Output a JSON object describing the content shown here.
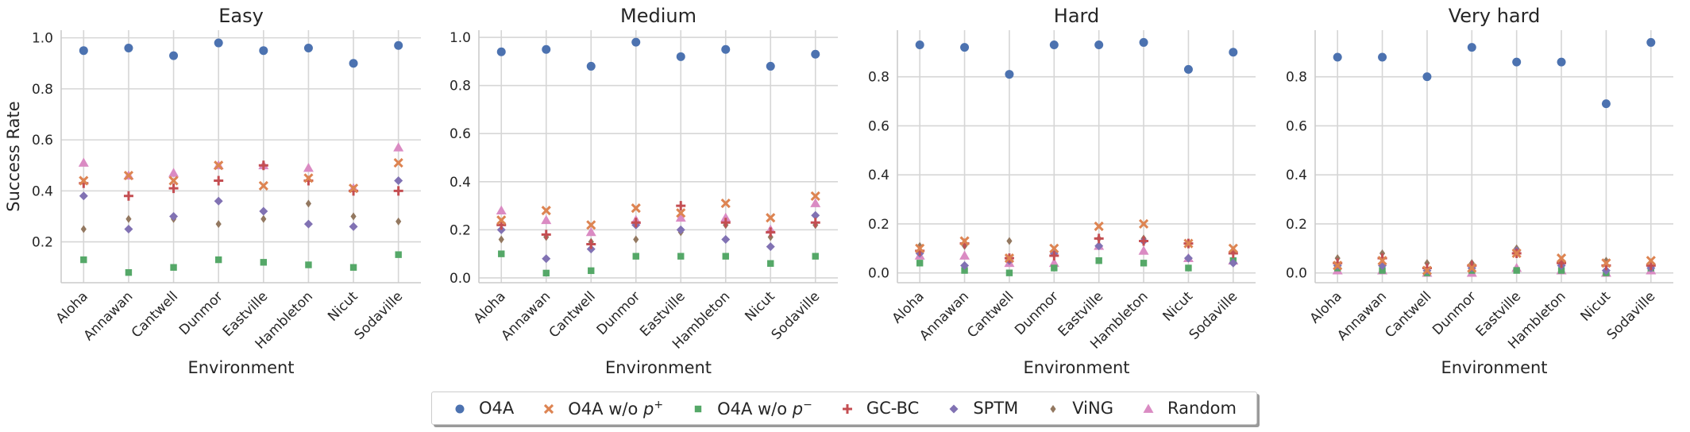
{
  "figure": {
    "ylabel": "Success Rate",
    "xlabel": "Environment"
  },
  "colors": {
    "O4A": "#4c72b0",
    "O4A w/o p+": "#dd8452",
    "O4A w/o p-": "#55a868",
    "GC-BC": "#c44e52",
    "SPTM": "#8172b3",
    "ViNG": "#937860",
    "Random": "#da8bc3"
  },
  "legend": [
    {
      "key": "O4A",
      "label": "O4A",
      "sup": "",
      "icon": "circle-marker"
    },
    {
      "key": "O4A w/o p+",
      "label": "O4A w/o p",
      "sup": "+",
      "icon": "x-marker"
    },
    {
      "key": "O4A w/o p-",
      "label": "O4A w/o p",
      "sup": "−",
      "icon": "square-marker"
    },
    {
      "key": "GC-BC",
      "label": "GC-BC",
      "sup": "",
      "icon": "plus-marker"
    },
    {
      "key": "SPTM",
      "label": "SPTM",
      "sup": "",
      "icon": "diamond-marker"
    },
    {
      "key": "ViNG",
      "label": "ViNG",
      "sup": "",
      "icon": "thin-diamond-marker"
    },
    {
      "key": "Random",
      "label": "Random",
      "sup": "",
      "icon": "triangle-marker"
    }
  ],
  "chart_data": [
    {
      "type": "scatter",
      "title": "Easy",
      "xlabel": "Environment",
      "ylabel": "Success Rate",
      "categories": [
        "Aloha",
        "Annawan",
        "Cantwell",
        "Dunmor",
        "Eastville",
        "Hambleton",
        "Nicut",
        "Sodaville"
      ],
      "ylim": [
        0.04,
        1.03
      ],
      "yticks": [
        0.2,
        0.4,
        0.6,
        0.8,
        1.0
      ],
      "grid": true,
      "series": [
        {
          "name": "O4A",
          "values": [
            0.95,
            0.96,
            0.93,
            0.98,
            0.95,
            0.96,
            0.9,
            0.97
          ]
        },
        {
          "name": "O4A w/o p+",
          "values": [
            0.44,
            0.46,
            0.44,
            0.5,
            0.42,
            0.45,
            0.41,
            0.51
          ]
        },
        {
          "name": "O4A w/o p-",
          "values": [
            0.13,
            0.08,
            0.1,
            0.13,
            0.12,
            0.11,
            0.1,
            0.15
          ]
        },
        {
          "name": "GC-BC",
          "values": [
            0.43,
            0.38,
            0.41,
            0.44,
            0.5,
            0.44,
            0.4,
            0.4
          ]
        },
        {
          "name": "SPTM",
          "values": [
            0.38,
            0.25,
            0.3,
            0.36,
            0.32,
            0.27,
            0.26,
            0.44
          ]
        },
        {
          "name": "ViNG",
          "values": [
            0.25,
            0.29,
            0.29,
            0.27,
            0.29,
            0.35,
            0.3,
            0.28
          ]
        },
        {
          "name": "Random",
          "values": [
            0.51,
            0.46,
            0.47,
            0.5,
            0.5,
            0.49,
            0.41,
            0.57
          ]
        }
      ]
    },
    {
      "type": "scatter",
      "title": "Medium",
      "xlabel": "Environment",
      "ylabel": "",
      "categories": [
        "Aloha",
        "Annawan",
        "Cantwell",
        "Dunmor",
        "Eastville",
        "Hambleton",
        "Nicut",
        "Sodaville"
      ],
      "ylim": [
        -0.02,
        1.03
      ],
      "yticks": [
        0.0,
        0.2,
        0.4,
        0.6,
        0.8,
        1.0
      ],
      "grid": true,
      "series": [
        {
          "name": "O4A",
          "values": [
            0.94,
            0.95,
            0.88,
            0.98,
            0.92,
            0.95,
            0.88,
            0.93
          ]
        },
        {
          "name": "O4A w/o p+",
          "values": [
            0.24,
            0.28,
            0.22,
            0.29,
            0.27,
            0.31,
            0.25,
            0.34
          ]
        },
        {
          "name": "O4A w/o p-",
          "values": [
            0.1,
            0.02,
            0.03,
            0.09,
            0.09,
            0.09,
            0.06,
            0.09
          ]
        },
        {
          "name": "GC-BC",
          "values": [
            0.22,
            0.18,
            0.14,
            0.23,
            0.3,
            0.23,
            0.19,
            0.23
          ]
        },
        {
          "name": "SPTM",
          "values": [
            0.2,
            0.08,
            0.12,
            0.22,
            0.2,
            0.16,
            0.13,
            0.26
          ]
        },
        {
          "name": "ViNG",
          "values": [
            0.16,
            0.17,
            0.15,
            0.16,
            0.19,
            0.22,
            0.17,
            0.22
          ]
        },
        {
          "name": "Random",
          "values": [
            0.28,
            0.24,
            0.19,
            0.24,
            0.25,
            0.25,
            0.2,
            0.31
          ]
        }
      ]
    },
    {
      "type": "scatter",
      "title": "Hard",
      "xlabel": "Environment",
      "ylabel": "",
      "categories": [
        "Aloha",
        "Annawan",
        "Cantwell",
        "Dunmor",
        "Eastville",
        "Hambleton",
        "Nicut",
        "Sodaville"
      ],
      "ylim": [
        -0.04,
        0.99
      ],
      "yticks": [
        0.0,
        0.2,
        0.4,
        0.6,
        0.8
      ],
      "grid": true,
      "series": [
        {
          "name": "O4A",
          "values": [
            0.93,
            0.92,
            0.81,
            0.93,
            0.93,
            0.94,
            0.83,
            0.9
          ]
        },
        {
          "name": "O4A w/o p+",
          "values": [
            0.1,
            0.13,
            0.06,
            0.1,
            0.19,
            0.2,
            0.12,
            0.1
          ]
        },
        {
          "name": "O4A w/o p-",
          "values": [
            0.04,
            0.01,
            0.0,
            0.02,
            0.05,
            0.04,
            0.02,
            0.05
          ]
        },
        {
          "name": "GC-BC",
          "values": [
            0.09,
            0.12,
            0.06,
            0.07,
            0.14,
            0.13,
            0.12,
            0.08
          ]
        },
        {
          "name": "SPTM",
          "values": [
            0.08,
            0.03,
            0.05,
            0.08,
            0.11,
            0.13,
            0.06,
            0.04
          ]
        },
        {
          "name": "ViNG",
          "values": [
            0.11,
            0.11,
            0.13,
            0.09,
            0.14,
            0.14,
            0.12,
            0.09
          ]
        },
        {
          "name": "Random",
          "values": [
            0.07,
            0.07,
            0.04,
            0.04,
            0.11,
            0.09,
            0.06,
            0.05
          ]
        }
      ]
    },
    {
      "type": "scatter",
      "title": "Very hard",
      "xlabel": "Environment",
      "ylabel": "",
      "categories": [
        "Aloha",
        "Annawan",
        "Cantwell",
        "Dunmor",
        "Eastville",
        "Hambleton",
        "Nicut",
        "Sodaville"
      ],
      "ylim": [
        -0.04,
        0.99
      ],
      "yticks": [
        0.0,
        0.2,
        0.4,
        0.6,
        0.8
      ],
      "grid": true,
      "series": [
        {
          "name": "O4A",
          "values": [
            0.88,
            0.88,
            0.8,
            0.92,
            0.86,
            0.86,
            0.69,
            0.94
          ]
        },
        {
          "name": "O4A w/o p+",
          "values": [
            0.03,
            0.05,
            0.01,
            0.02,
            0.08,
            0.06,
            0.04,
            0.05
          ]
        },
        {
          "name": "O4A w/o p-",
          "values": [
            0.02,
            0.01,
            0.0,
            0.01,
            0.01,
            0.01,
            0.0,
            0.02
          ]
        },
        {
          "name": "GC-BC",
          "values": [
            0.04,
            0.06,
            0.02,
            0.03,
            0.08,
            0.04,
            0.03,
            0.03
          ]
        },
        {
          "name": "SPTM",
          "values": [
            0.03,
            0.03,
            0.01,
            0.02,
            0.09,
            0.03,
            0.01,
            0.02
          ]
        },
        {
          "name": "ViNG",
          "values": [
            0.06,
            0.08,
            0.04,
            0.04,
            0.1,
            0.05,
            0.05,
            0.02
          ]
        },
        {
          "name": "Random",
          "values": [
            0.01,
            0.01,
            0.0,
            0.0,
            0.02,
            0.01,
            0.0,
            0.01
          ]
        }
      ]
    }
  ]
}
